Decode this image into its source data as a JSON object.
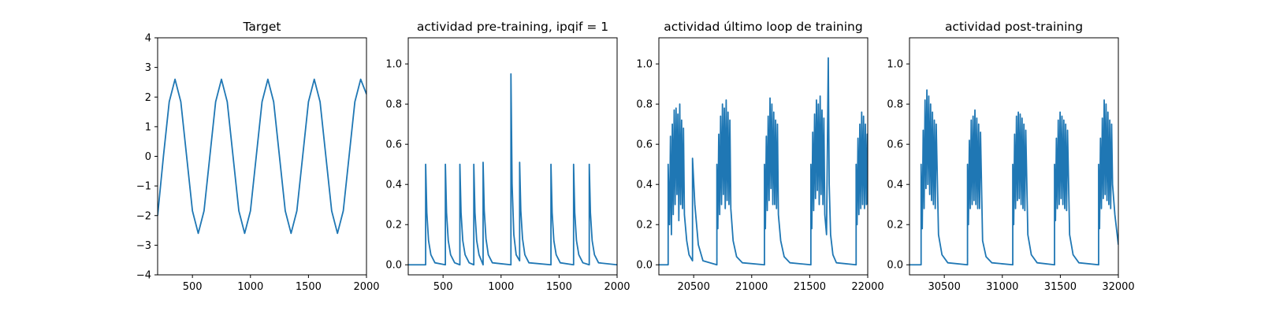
{
  "chart_data": [
    {
      "type": "line",
      "title": "Target",
      "xlabel": "",
      "ylabel": "",
      "xlim": [
        200,
        2000
      ],
      "ylim": [
        -4,
        4
      ],
      "xticks": [
        500,
        1000,
        1500,
        2000
      ],
      "yticks": [
        -4,
        -3,
        -2,
        -1,
        0,
        1,
        2,
        3,
        4
      ],
      "grid": false,
      "series": [
        {
          "color": "#1f77b4",
          "x": [
            200,
            250,
            300,
            350,
            400,
            450,
            500,
            550,
            600,
            650,
            700,
            750,
            800,
            850,
            900,
            950,
            1000,
            1050,
            1100,
            1150,
            1200,
            1250,
            1300,
            1350,
            1400,
            1450,
            1500,
            1550,
            1600,
            1650,
            1700,
            1750,
            1800,
            1850,
            1900,
            1950,
            2000
          ],
          "y": [
            -2.0,
            0.0,
            1.84,
            2.6,
            1.84,
            0.0,
            -1.84,
            -2.6,
            -1.84,
            0.0,
            1.84,
            2.6,
            1.84,
            0.0,
            -1.84,
            -2.6,
            -1.84,
            0.0,
            1.84,
            2.6,
            1.84,
            0.0,
            -1.84,
            -2.6,
            -1.84,
            0.0,
            1.84,
            2.6,
            1.84,
            0.0,
            -1.84,
            -2.6,
            -1.84,
            0.0,
            1.84,
            2.6,
            2.1
          ]
        }
      ]
    },
    {
      "type": "line",
      "title": "actividad pre-training, ipqif = 1",
      "xlabel": "",
      "ylabel": "",
      "xlim": [
        200,
        2000
      ],
      "ylim": [
        -0.05,
        1.13
      ],
      "xticks": [
        500,
        1000,
        1500,
        2000
      ],
      "yticks": [
        0.0,
        0.2,
        0.4,
        0.6,
        0.8,
        1.0
      ],
      "grid": false,
      "series": [
        {
          "color": "#1f77b4",
          "x": [
            200,
            350,
            350,
            360,
            375,
            395,
            430,
            520,
            520,
            530,
            545,
            565,
            600,
            645,
            645,
            655,
            670,
            690,
            725,
            765,
            765,
            775,
            790,
            810,
            845,
            845,
            855,
            870,
            890,
            925,
            1085,
            1085,
            1095,
            1110,
            1130,
            1160,
            1160,
            1170,
            1185,
            1205,
            1240,
            1430,
            1430,
            1440,
            1455,
            1475,
            1510,
            1625,
            1625,
            1635,
            1650,
            1670,
            1705,
            1760,
            1760,
            1770,
            1785,
            1805,
            1840,
            2000
          ],
          "y": [
            0,
            0,
            0.5,
            0.26,
            0.12,
            0.05,
            0.01,
            0,
            0.5,
            0.26,
            0.12,
            0.05,
            0.01,
            0,
            0.5,
            0.26,
            0.12,
            0.05,
            0.01,
            0,
            0.5,
            0.26,
            0.12,
            0.05,
            0,
            0.51,
            0.27,
            0.13,
            0.05,
            0.01,
            0,
            0.95,
            0.4,
            0.15,
            0.05,
            0.02,
            0.51,
            0.27,
            0.13,
            0.05,
            0.01,
            0,
            0.5,
            0.26,
            0.12,
            0.05,
            0.01,
            0,
            0.5,
            0.26,
            0.12,
            0.05,
            0.01,
            0,
            0.5,
            0.26,
            0.12,
            0.05,
            0.01,
            0
          ]
        }
      ]
    },
    {
      "type": "line",
      "title": "actividad último loop de training",
      "xlabel": "",
      "ylabel": "",
      "xlim": [
        20200,
        22000
      ],
      "ylim": [
        -0.05,
        1.13
      ],
      "xticks": [
        20500,
        21000,
        21500,
        22000
      ],
      "yticks": [
        0.0,
        0.2,
        0.4,
        0.6,
        0.8,
        1.0
      ],
      "grid": false,
      "series": [
        {
          "color": "#1f77b4",
          "x": [
            20200,
            20280,
            20280,
            20292,
            20300,
            20308,
            20316,
            20324,
            20332,
            20340,
            20348,
            20356,
            20364,
            20372,
            20380,
            20388,
            20396,
            20404,
            20412,
            20420,
            20440,
            20460,
            20490,
            20490,
            20510,
            20540,
            20580,
            20700,
            20700,
            20708,
            20716,
            20724,
            20732,
            20740,
            20748,
            20756,
            20764,
            20772,
            20780,
            20788,
            20796,
            20804,
            20812,
            20820,
            20840,
            20870,
            20920,
            21110,
            21110,
            21118,
            21126,
            21134,
            21142,
            21150,
            21158,
            21166,
            21174,
            21182,
            21190,
            21198,
            21206,
            21214,
            21222,
            21230,
            21250,
            21280,
            21330,
            21510,
            21510,
            21518,
            21526,
            21534,
            21542,
            21550,
            21558,
            21566,
            21574,
            21582,
            21590,
            21598,
            21606,
            21614,
            21622,
            21630,
            21645,
            21660,
            21668,
            21680,
            21700,
            21730,
            21900,
            21900,
            21908,
            21916,
            21924,
            21932,
            21940,
            21948,
            21956,
            21964,
            21972,
            21980,
            21988,
            21996,
            22000
          ],
          "y": [
            0,
            0,
            0.5,
            0.2,
            0.64,
            0.15,
            0.7,
            0.25,
            0.77,
            0.3,
            0.78,
            0.35,
            0.75,
            0.22,
            0.8,
            0.3,
            0.72,
            0.28,
            0.68,
            0.25,
            0.12,
            0.05,
            0.02,
            0.53,
            0.3,
            0.1,
            0.02,
            0,
            0.5,
            0.18,
            0.65,
            0.25,
            0.74,
            0.3,
            0.8,
            0.35,
            0.78,
            0.28,
            0.82,
            0.32,
            0.76,
            0.3,
            0.72,
            0.28,
            0.12,
            0.04,
            0.01,
            0,
            0.5,
            0.18,
            0.64,
            0.27,
            0.74,
            0.32,
            0.83,
            0.38,
            0.8,
            0.3,
            0.76,
            0.3,
            0.72,
            0.28,
            0.7,
            0.25,
            0.12,
            0.04,
            0.01,
            0,
            0.5,
            0.18,
            0.66,
            0.27,
            0.75,
            0.33,
            0.82,
            0.37,
            0.8,
            0.3,
            0.84,
            0.35,
            0.77,
            0.3,
            0.73,
            0.25,
            0.15,
            1.03,
            0.4,
            0.15,
            0.05,
            0.01,
            0,
            0.5,
            0.2,
            0.63,
            0.25,
            0.7,
            0.28,
            0.76,
            0.3,
            0.74,
            0.28,
            0.7,
            0.3,
            0.65,
            0.3
          ]
        }
      ]
    },
    {
      "type": "line",
      "title": "actividad post-training",
      "xlabel": "",
      "ylabel": "",
      "xlim": [
        30200,
        32000
      ],
      "ylim": [
        -0.05,
        1.13
      ],
      "xticks": [
        30500,
        31000,
        31500,
        32000
      ],
      "yticks": [
        0.0,
        0.2,
        0.4,
        0.6,
        0.8,
        1.0
      ],
      "grid": false,
      "series": [
        {
          "color": "#1f77b4",
          "x": [
            30200,
            30300,
            30300,
            30310,
            30318,
            30326,
            30334,
            30342,
            30350,
            30358,
            30366,
            30374,
            30382,
            30390,
            30398,
            30406,
            30414,
            30422,
            30430,
            30450,
            30480,
            30530,
            30700,
            30700,
            30708,
            30716,
            30724,
            30732,
            30740,
            30748,
            30756,
            30764,
            30772,
            30780,
            30788,
            30796,
            30804,
            30812,
            30830,
            30860,
            30910,
            31090,
            31090,
            31098,
            31106,
            31114,
            31122,
            31130,
            31138,
            31146,
            31154,
            31162,
            31170,
            31178,
            31186,
            31194,
            31202,
            31220,
            31250,
            31300,
            31450,
            31450,
            31458,
            31466,
            31474,
            31482,
            31490,
            31498,
            31506,
            31514,
            31522,
            31530,
            31538,
            31546,
            31554,
            31562,
            31580,
            31610,
            31660,
            31830,
            31830,
            31838,
            31846,
            31854,
            31862,
            31870,
            31878,
            31886,
            31894,
            31902,
            31910,
            31918,
            31926,
            31934,
            31942,
            31950,
            31970,
            32000
          ],
          "y": [
            0,
            0,
            0.5,
            0.18,
            0.67,
            0.28,
            0.82,
            0.38,
            0.87,
            0.4,
            0.84,
            0.35,
            0.8,
            0.32,
            0.76,
            0.3,
            0.72,
            0.28,
            0.7,
            0.15,
            0.05,
            0.01,
            0,
            0.5,
            0.2,
            0.62,
            0.28,
            0.72,
            0.3,
            0.74,
            0.32,
            0.77,
            0.3,
            0.73,
            0.28,
            0.7,
            0.28,
            0.66,
            0.12,
            0.04,
            0.01,
            0,
            0.5,
            0.2,
            0.65,
            0.28,
            0.74,
            0.32,
            0.76,
            0.33,
            0.75,
            0.3,
            0.73,
            0.28,
            0.7,
            0.27,
            0.67,
            0.15,
            0.05,
            0.01,
            0,
            0.5,
            0.22,
            0.63,
            0.28,
            0.72,
            0.3,
            0.76,
            0.33,
            0.74,
            0.3,
            0.72,
            0.28,
            0.7,
            0.27,
            0.67,
            0.15,
            0.05,
            0.01,
            0,
            0.5,
            0.18,
            0.63,
            0.28,
            0.73,
            0.33,
            0.82,
            0.35,
            0.8,
            0.32,
            0.76,
            0.3,
            0.72,
            0.28,
            0.7,
            0.4,
            0.25,
            0.1
          ]
        }
      ]
    }
  ]
}
